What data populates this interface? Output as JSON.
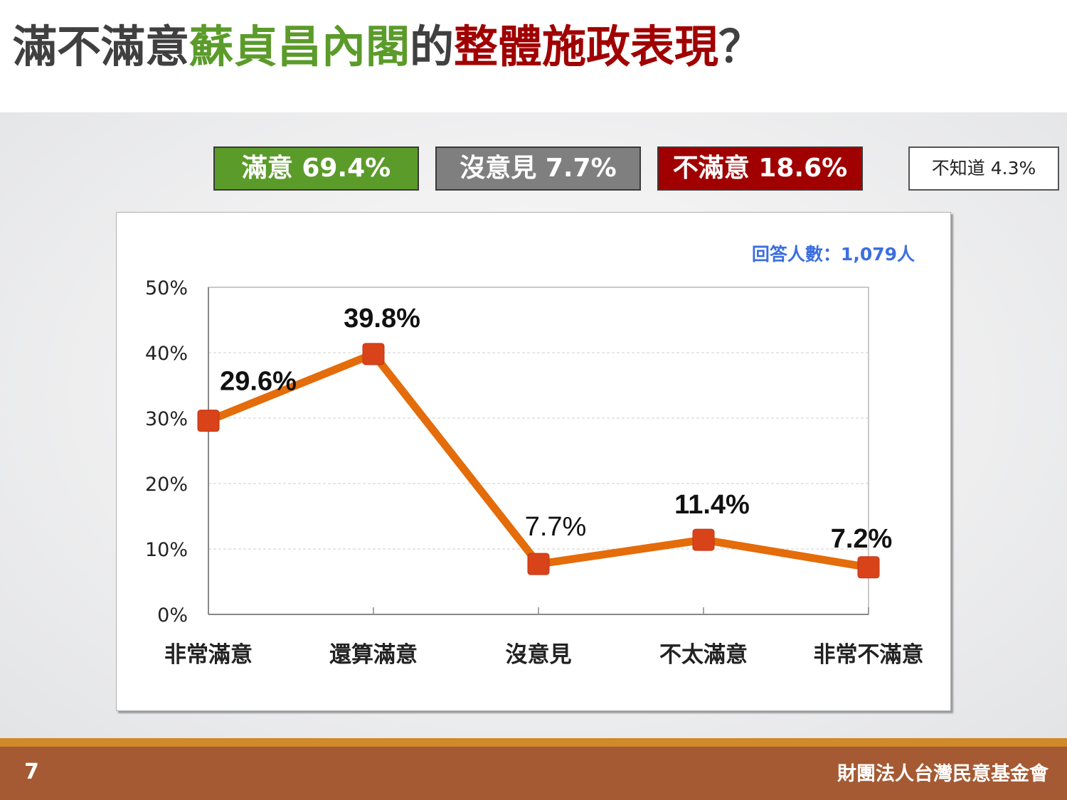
{
  "title": {
    "part1": "滿不滿意",
    "part2": "蘇貞昌內閣",
    "part3": "的",
    "part4": "整體施政表現",
    "part5": "？"
  },
  "legend": {
    "satisfied": "滿意 69.4%",
    "no_opinion": "沒意見 7.7%",
    "dissatisfied": "不滿意 18.6%",
    "dont_know": "不知道 4.3%"
  },
  "colors": {
    "green": "#5b9b2a",
    "gray": "#7f7f7f",
    "red": "#a00000",
    "line": "#e46c0a",
    "marker": "#d9431a",
    "note": "#3c6ee0",
    "footer": "#a55a33"
  },
  "chart_data": {
    "type": "line",
    "categories": [
      "非常滿意",
      "還算滿意",
      "沒意見",
      "不太滿意",
      "非常不滿意"
    ],
    "values": [
      29.6,
      39.8,
      7.7,
      11.4,
      7.2
    ],
    "data_labels": [
      "29.6%",
      "39.8%",
      "7.7%",
      "11.4%",
      "7.2%"
    ],
    "y_ticks": [
      "0%",
      "10%",
      "20%",
      "30%",
      "40%",
      "50%"
    ],
    "ylim": [
      0,
      50
    ],
    "grid": true,
    "annotation": "回答人數：1,079人"
  },
  "footer": {
    "page": "7",
    "org": "財團法人台灣民意基金會"
  }
}
